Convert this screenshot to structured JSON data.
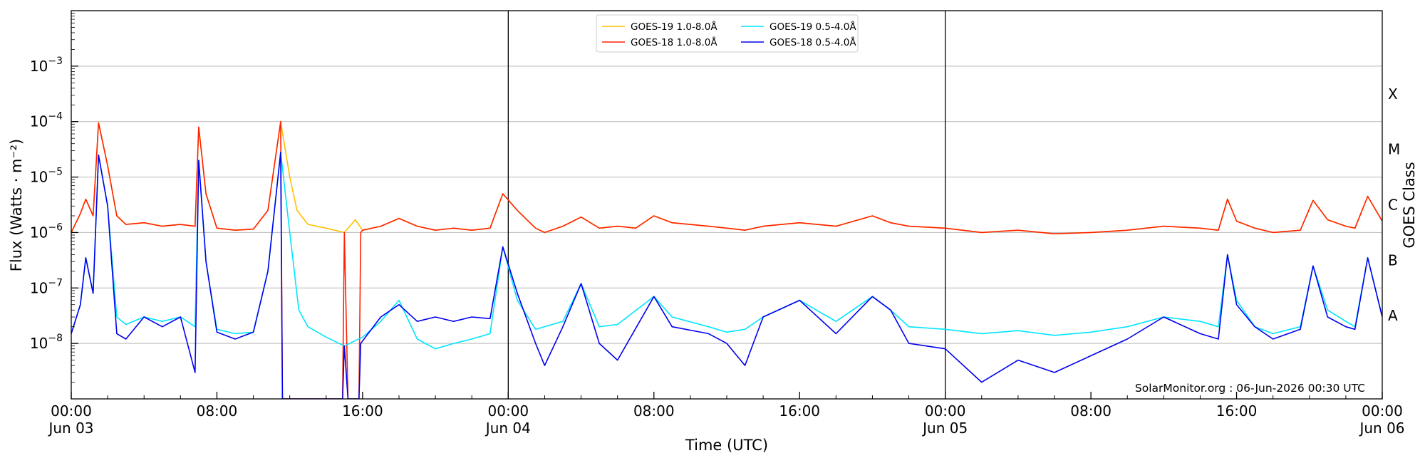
{
  "chart_data": {
    "type": "line",
    "xlabel": "Time (UTC)",
    "ylabel": "Flux (Watts · m⁻²)",
    "y2label": "GOES Class",
    "credit": "SolarMonitor.org : 06-Jun-2026 00:30 UTC",
    "y_scale": "log",
    "xlim": [
      0,
      72
    ],
    "ylim_exp": [
      -9,
      -2
    ],
    "grid": "horizontal",
    "legend_position": "top-center",
    "x_ticks": [
      {
        "x": 0,
        "line1": "00:00",
        "line2": "Jun 03"
      },
      {
        "x": 8,
        "line1": "08:00",
        "line2": ""
      },
      {
        "x": 16,
        "line1": "16:00",
        "line2": ""
      },
      {
        "x": 24,
        "line1": "00:00",
        "line2": "Jun 04"
      },
      {
        "x": 32,
        "line1": "08:00",
        "line2": ""
      },
      {
        "x": 40,
        "line1": "16:00",
        "line2": ""
      },
      {
        "x": 48,
        "line1": "00:00",
        "line2": "Jun 05"
      },
      {
        "x": 56,
        "line1": "08:00",
        "line2": ""
      },
      {
        "x": 64,
        "line1": "16:00",
        "line2": ""
      },
      {
        "x": 72,
        "line1": "00:00",
        "line2": "Jun 06"
      }
    ],
    "y_ticks": [
      {
        "exp": -8,
        "base": "10",
        "sup": "−8"
      },
      {
        "exp": -7,
        "base": "10",
        "sup": "−7"
      },
      {
        "exp": -6,
        "base": "10",
        "sup": "−6"
      },
      {
        "exp": -5,
        "base": "10",
        "sup": "−5"
      },
      {
        "exp": -4,
        "base": "10",
        "sup": "−4"
      },
      {
        "exp": -3,
        "base": "10",
        "sup": "−3"
      }
    ],
    "class_labels": [
      {
        "label": "A",
        "exp": -7.5
      },
      {
        "label": "B",
        "exp": -6.5
      },
      {
        "label": "C",
        "exp": -5.5
      },
      {
        "label": "M",
        "exp": -4.5
      },
      {
        "label": "X",
        "exp": -3.5
      }
    ],
    "day_boundaries": [
      24,
      48
    ],
    "series": [
      {
        "name": "GOES-19 1.0-8.0Å",
        "color": "#ffc000",
        "points": [
          [
            0,
            1e-06
          ],
          [
            0.5,
            2.2e-06
          ],
          [
            0.8,
            4e-06
          ],
          [
            1.2,
            2e-06
          ],
          [
            1.5,
            9.5e-05
          ],
          [
            2,
            1.6e-05
          ],
          [
            2.5,
            2e-06
          ],
          [
            3,
            1.4e-06
          ],
          [
            4,
            1.5e-06
          ],
          [
            5,
            1.3e-06
          ],
          [
            6,
            1.4e-06
          ],
          [
            6.8,
            1.3e-06
          ],
          [
            7.0,
            8e-05
          ],
          [
            7.4,
            5e-06
          ],
          [
            8,
            1.2e-06
          ],
          [
            9,
            1.1e-06
          ],
          [
            10,
            1.15e-06
          ],
          [
            10.8,
            2.5e-06
          ],
          [
            11.5,
            0.0001
          ],
          [
            12,
            1e-05
          ],
          [
            12.4,
            2.5e-06
          ],
          [
            13,
            1.4e-06
          ],
          [
            14,
            1.2e-06
          ],
          [
            15,
            1e-06
          ],
          [
            15.6,
            1.7e-06
          ],
          [
            16,
            1.1e-06
          ],
          [
            17,
            1.3e-06
          ],
          [
            18,
            1.8e-06
          ],
          [
            19,
            1.3e-06
          ],
          [
            20,
            1.1e-06
          ],
          [
            21,
            1.2e-06
          ],
          [
            22,
            1.1e-06
          ],
          [
            23,
            1.2e-06
          ],
          [
            23.7,
            5e-06
          ],
          [
            24.5,
            2.5e-06
          ],
          [
            25.5,
            1.2e-06
          ],
          [
            26,
            1e-06
          ],
          [
            27,
            1.3e-06
          ],
          [
            28,
            1.9e-06
          ],
          [
            29,
            1.2e-06
          ],
          [
            30,
            1.3e-06
          ],
          [
            31,
            1.2e-06
          ],
          [
            32,
            2e-06
          ],
          [
            33,
            1.5e-06
          ],
          [
            35,
            1.3e-06
          ],
          [
            36,
            1.2e-06
          ],
          [
            37,
            1.1e-06
          ],
          [
            38,
            1.3e-06
          ],
          [
            40,
            1.5e-06
          ],
          [
            42,
            1.3e-06
          ],
          [
            44,
            2e-06
          ],
          [
            45,
            1.5e-06
          ],
          [
            46,
            1.3e-06
          ],
          [
            48,
            1.2e-06
          ],
          [
            50,
            1e-06
          ],
          [
            52,
            1.1e-06
          ],
          [
            54,
            9.5e-07
          ],
          [
            56,
            1e-06
          ],
          [
            58,
            1.1e-06
          ],
          [
            60,
            1.3e-06
          ],
          [
            62,
            1.2e-06
          ],
          [
            63,
            1.1e-06
          ],
          [
            63.5,
            4e-06
          ],
          [
            64,
            1.6e-06
          ],
          [
            65,
            1.2e-06
          ],
          [
            66,
            1e-06
          ],
          [
            67.5,
            1.1e-06
          ],
          [
            68.2,
            3.8e-06
          ],
          [
            69,
            1.7e-06
          ],
          [
            70,
            1.3e-06
          ],
          [
            70.5,
            1.2e-06
          ],
          [
            71.2,
            4.5e-06
          ],
          [
            72,
            1.6e-06
          ]
        ]
      },
      {
        "name": "GOES-18 1.0-8.0Å",
        "color": "#ff2200",
        "points": [
          [
            0,
            1e-06
          ],
          [
            0.5,
            2.2e-06
          ],
          [
            0.8,
            4e-06
          ],
          [
            1.2,
            2e-06
          ],
          [
            1.5,
            9.5e-05
          ],
          [
            2,
            1.6e-05
          ],
          [
            2.5,
            2e-06
          ],
          [
            3,
            1.4e-06
          ],
          [
            4,
            1.5e-06
          ],
          [
            5,
            1.3e-06
          ],
          [
            6,
            1.4e-06
          ],
          [
            6.8,
            1.3e-06
          ],
          [
            7.0,
            8e-05
          ],
          [
            7.4,
            5e-06
          ],
          [
            8,
            1.2e-06
          ],
          [
            9,
            1.1e-06
          ],
          [
            10,
            1.15e-06
          ],
          [
            10.8,
            2.5e-06
          ],
          [
            11.5,
            0.0001
          ],
          [
            11.6,
            1e-09
          ],
          [
            14.9,
            1e-09
          ],
          [
            15.0,
            1e-06
          ],
          [
            15.2,
            1e-09
          ],
          [
            15.8,
            1e-09
          ],
          [
            15.9,
            1e-06
          ],
          [
            16,
            1.1e-06
          ],
          [
            17,
            1.3e-06
          ],
          [
            18,
            1.8e-06
          ],
          [
            19,
            1.3e-06
          ],
          [
            20,
            1.1e-06
          ],
          [
            21,
            1.2e-06
          ],
          [
            22,
            1.1e-06
          ],
          [
            23,
            1.2e-06
          ],
          [
            23.7,
            5e-06
          ],
          [
            24.5,
            2.5e-06
          ],
          [
            25.5,
            1.2e-06
          ],
          [
            26,
            1e-06
          ],
          [
            27,
            1.3e-06
          ],
          [
            28,
            1.9e-06
          ],
          [
            29,
            1.2e-06
          ],
          [
            30,
            1.3e-06
          ],
          [
            31,
            1.2e-06
          ],
          [
            32,
            2e-06
          ],
          [
            33,
            1.5e-06
          ],
          [
            35,
            1.3e-06
          ],
          [
            36,
            1.2e-06
          ],
          [
            37,
            1.1e-06
          ],
          [
            38,
            1.3e-06
          ],
          [
            40,
            1.5e-06
          ],
          [
            42,
            1.3e-06
          ],
          [
            44,
            2e-06
          ],
          [
            45,
            1.5e-06
          ],
          [
            46,
            1.3e-06
          ],
          [
            48,
            1.2e-06
          ],
          [
            50,
            1e-06
          ],
          [
            52,
            1.1e-06
          ],
          [
            54,
            9.5e-07
          ],
          [
            56,
            1e-06
          ],
          [
            58,
            1.1e-06
          ],
          [
            60,
            1.3e-06
          ],
          [
            62,
            1.2e-06
          ],
          [
            63,
            1.1e-06
          ],
          [
            63.5,
            4e-06
          ],
          [
            64,
            1.6e-06
          ],
          [
            65,
            1.2e-06
          ],
          [
            66,
            1e-06
          ],
          [
            67.5,
            1.1e-06
          ],
          [
            68.2,
            3.8e-06
          ],
          [
            69,
            1.7e-06
          ],
          [
            70,
            1.3e-06
          ],
          [
            70.5,
            1.2e-06
          ],
          [
            71.2,
            4.5e-06
          ],
          [
            72,
            1.6e-06
          ]
        ]
      },
      {
        "name": "GOES-19 0.5-4.0Å",
        "color": "#00e5ff",
        "points": [
          [
            0,
            1.5e-08
          ],
          [
            0.5,
            5e-08
          ],
          [
            0.8,
            3.5e-07
          ],
          [
            1.2,
            8e-08
          ],
          [
            1.5,
            2.5e-05
          ],
          [
            2,
            3e-06
          ],
          [
            2.5,
            3e-08
          ],
          [
            3,
            2.2e-08
          ],
          [
            4,
            3e-08
          ],
          [
            5,
            2.5e-08
          ],
          [
            6,
            3e-08
          ],
          [
            6.8,
            2e-08
          ],
          [
            7.0,
            2e-05
          ],
          [
            7.4,
            3e-07
          ],
          [
            8,
            1.8e-08
          ],
          [
            9,
            1.5e-08
          ],
          [
            10,
            1.6e-08
          ],
          [
            10.8,
            2e-07
          ],
          [
            11.5,
            2.8e-05
          ],
          [
            12,
            1e-06
          ],
          [
            12.5,
            4e-08
          ],
          [
            13,
            2e-08
          ],
          [
            14,
            1.3e-08
          ],
          [
            15,
            9e-09
          ],
          [
            16,
            1.3e-08
          ],
          [
            17,
            2.5e-08
          ],
          [
            18,
            6e-08
          ],
          [
            19,
            1.2e-08
          ],
          [
            20,
            8e-09
          ],
          [
            21,
            1e-08
          ],
          [
            22,
            1.2e-08
          ],
          [
            23,
            1.5e-08
          ],
          [
            23.7,
            5.5e-07
          ],
          [
            24.5,
            6e-08
          ],
          [
            25.5,
            1.8e-08
          ],
          [
            27,
            2.5e-08
          ],
          [
            28,
            1.2e-07
          ],
          [
            29,
            2e-08
          ],
          [
            30,
            2.2e-08
          ],
          [
            32,
            7e-08
          ],
          [
            33,
            3e-08
          ],
          [
            35,
            2e-08
          ],
          [
            36,
            1.6e-08
          ],
          [
            37,
            1.8e-08
          ],
          [
            38,
            3e-08
          ],
          [
            40,
            6e-08
          ],
          [
            42,
            2.5e-08
          ],
          [
            44,
            7e-08
          ],
          [
            45,
            4e-08
          ],
          [
            46,
            2e-08
          ],
          [
            48,
            1.8e-08
          ],
          [
            50,
            1.5e-08
          ],
          [
            52,
            1.7e-08
          ],
          [
            54,
            1.4e-08
          ],
          [
            56,
            1.6e-08
          ],
          [
            58,
            2e-08
          ],
          [
            60,
            3e-08
          ],
          [
            62,
            2.5e-08
          ],
          [
            63,
            2e-08
          ],
          [
            63.5,
            4e-07
          ],
          [
            64,
            6e-08
          ],
          [
            65,
            2e-08
          ],
          [
            66,
            1.5e-08
          ],
          [
            67.5,
            2e-08
          ],
          [
            68.2,
            2.5e-07
          ],
          [
            69,
            4e-08
          ],
          [
            70,
            2.5e-08
          ],
          [
            70.5,
            2e-08
          ],
          [
            71.2,
            3.5e-07
          ],
          [
            72,
            3e-08
          ]
        ]
      },
      {
        "name": "GOES-18 0.5-4.0Å",
        "color": "#0000ee",
        "points": [
          [
            0,
            1.5e-08
          ],
          [
            0.5,
            5e-08
          ],
          [
            0.8,
            3.5e-07
          ],
          [
            1.2,
            8e-08
          ],
          [
            1.5,
            2.5e-05
          ],
          [
            2,
            3e-06
          ],
          [
            2.5,
            1.5e-08
          ],
          [
            3,
            1.2e-08
          ],
          [
            4,
            3e-08
          ],
          [
            5,
            2e-08
          ],
          [
            6,
            3e-08
          ],
          [
            6.8,
            3e-09
          ],
          [
            7.0,
            2e-05
          ],
          [
            7.4,
            3e-07
          ],
          [
            8,
            1.6e-08
          ],
          [
            9,
            1.2e-08
          ],
          [
            10,
            1.6e-08
          ],
          [
            10.8,
            2e-07
          ],
          [
            11.5,
            2.8e-05
          ],
          [
            11.6,
            1e-09
          ],
          [
            14.9,
            1e-09
          ],
          [
            15.0,
            9e-09
          ],
          [
            15.2,
            1e-09
          ],
          [
            15.8,
            1e-09
          ],
          [
            15.9,
            1e-08
          ],
          [
            17,
            3e-08
          ],
          [
            18,
            5e-08
          ],
          [
            19,
            2.5e-08
          ],
          [
            20,
            3e-08
          ],
          [
            21,
            2.5e-08
          ],
          [
            22,
            3e-08
          ],
          [
            23,
            2.8e-08
          ],
          [
            23.7,
            5.5e-07
          ],
          [
            24.5,
            8e-08
          ],
          [
            25.5,
            1e-08
          ],
          [
            26,
            4e-09
          ],
          [
            27,
            2e-08
          ],
          [
            28,
            1.2e-07
          ],
          [
            29,
            1e-08
          ],
          [
            30,
            5e-09
          ],
          [
            32,
            7e-08
          ],
          [
            33,
            2e-08
          ],
          [
            35,
            1.5e-08
          ],
          [
            36,
            1e-08
          ],
          [
            37,
            4e-09
          ],
          [
            38,
            3e-08
          ],
          [
            40,
            6e-08
          ],
          [
            42,
            1.5e-08
          ],
          [
            44,
            7e-08
          ],
          [
            45,
            4e-08
          ],
          [
            46,
            1e-08
          ],
          [
            48,
            8e-09
          ],
          [
            50,
            2e-09
          ],
          [
            52,
            5e-09
          ],
          [
            54,
            3e-09
          ],
          [
            56,
            6e-09
          ],
          [
            58,
            1.2e-08
          ],
          [
            60,
            3e-08
          ],
          [
            62,
            1.5e-08
          ],
          [
            63,
            1.2e-08
          ],
          [
            63.5,
            4e-07
          ],
          [
            64,
            5e-08
          ],
          [
            65,
            2e-08
          ],
          [
            66,
            1.2e-08
          ],
          [
            67.5,
            1.8e-08
          ],
          [
            68.2,
            2.5e-07
          ],
          [
            69,
            3e-08
          ],
          [
            70,
            2e-08
          ],
          [
            70.5,
            1.8e-08
          ],
          [
            71.2,
            3.5e-07
          ],
          [
            72,
            3e-08
          ]
        ]
      }
    ]
  }
}
